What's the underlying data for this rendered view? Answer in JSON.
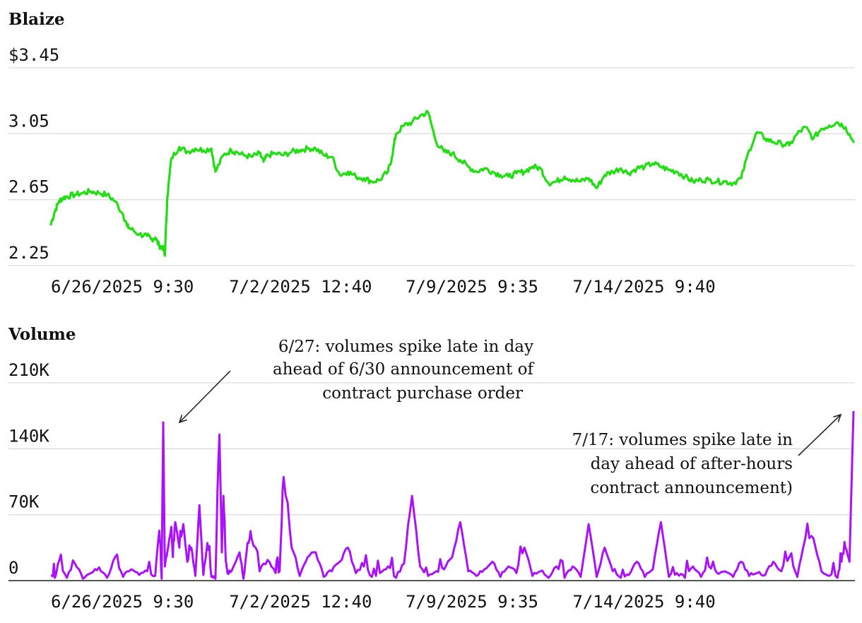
{
  "chart_data": [
    {
      "type": "line",
      "title": "Blaize",
      "y_tick_labels": [
        "$3.45",
        "3.05",
        "2.65",
        "2.25"
      ],
      "y_ticks": [
        3.45,
        3.05,
        2.65,
        2.25
      ],
      "ylim": [
        2.25,
        3.45
      ],
      "x_tick_labels": [
        "6/26/2025 9:30",
        "7/2/2025 12:40",
        "7/9/2025 9:35",
        "7/14/2025 9:40"
      ],
      "x_tick_positions": [
        0,
        0.222,
        0.442,
        0.65
      ],
      "grid": true,
      "colors": {
        "line": "#22dd11"
      },
      "series": [
        {
          "x": [
            0,
            0.005,
            0.01,
            0.015,
            0.02,
            0.03,
            0.04,
            0.05,
            0.06,
            0.07,
            0.08,
            0.09,
            0.095,
            0.1,
            0.11,
            0.12,
            0.125,
            0.13,
            0.135,
            0.14,
            0.142,
            0.145,
            0.15,
            0.16,
            0.17,
            0.18,
            0.19,
            0.2,
            0.205,
            0.215,
            0.225,
            0.23,
            0.24,
            0.25,
            0.26,
            0.265,
            0.27,
            0.28,
            0.29,
            0.3,
            0.31,
            0.32,
            0.33,
            0.34,
            0.35,
            0.36,
            0.37,
            0.38,
            0.39,
            0.4,
            0.41,
            0.42,
            0.425,
            0.43,
            0.44,
            0.45,
            0.46,
            0.47,
            0.48,
            0.49,
            0.5,
            0.51,
            0.52,
            0.53,
            0.54,
            0.55,
            0.56,
            0.57,
            0.58,
            0.59,
            0.6,
            0.61,
            0.62,
            0.63,
            0.64,
            0.65,
            0.66,
            0.67,
            0.68,
            0.69,
            0.7,
            0.71,
            0.72,
            0.73,
            0.74,
            0.75,
            0.76,
            0.77,
            0.78,
            0.79,
            0.8,
            0.81,
            0.82,
            0.83,
            0.84,
            0.85,
            0.86,
            0.87,
            0.88,
            0.89,
            0.9,
            0.91,
            0.92,
            0.93,
            0.94,
            0.95,
            0.96,
            0.97,
            0.98,
            0.99,
            1.0
          ],
          "y": [
            2.5,
            2.58,
            2.64,
            2.66,
            2.67,
            2.68,
            2.69,
            2.7,
            2.69,
            2.68,
            2.64,
            2.56,
            2.49,
            2.47,
            2.44,
            2.43,
            2.41,
            2.42,
            2.37,
            2.36,
            2.31,
            2.66,
            2.9,
            2.97,
            2.94,
            2.96,
            2.95,
            2.96,
            2.82,
            2.92,
            2.95,
            2.94,
            2.92,
            2.91,
            2.93,
            2.88,
            2.92,
            2.93,
            2.92,
            2.94,
            2.95,
            2.96,
            2.96,
            2.92,
            2.91,
            2.8,
            2.82,
            2.79,
            2.78,
            2.76,
            2.77,
            2.82,
            2.91,
            3.05,
            3.1,
            3.12,
            3.16,
            3.18,
            3.0,
            2.94,
            2.93,
            2.89,
            2.85,
            2.82,
            2.84,
            2.82,
            2.8,
            2.79,
            2.81,
            2.82,
            2.85,
            2.84,
            2.75,
            2.76,
            2.79,
            2.77,
            2.76,
            2.78,
            2.72,
            2.8,
            2.82,
            2.84,
            2.81,
            2.84,
            2.85,
            2.87,
            2.85,
            2.83,
            2.82,
            2.79,
            2.76,
            2.77,
            2.77,
            2.76,
            2.76,
            2.75,
            2.78,
            2.95,
            3.06,
            3.02,
            3.0,
            2.99,
            2.98,
            3.05,
            3.09,
            3.02,
            3.08,
            3.1,
            3.12,
            3.09,
            3.0
          ]
        }
      ]
    },
    {
      "type": "line",
      "title": "Volume",
      "y_tick_labels": [
        "210K",
        "140K",
        "70K",
        "0"
      ],
      "y_ticks": [
        210000,
        140000,
        70000,
        0
      ],
      "ylim": [
        0,
        210000
      ],
      "x_tick_labels": [
        "6/26/2025 9:30",
        "7/2/2025 12:40",
        "7/9/2025 9:35",
        "7/14/2025 9:40"
      ],
      "x_tick_positions": [
        0,
        0.222,
        0.442,
        0.65
      ],
      "grid": true,
      "colors": {
        "line": "#aa11ff"
      },
      "series": [
        {
          "x": [
            0,
            0.005,
            0.01,
            0.02,
            0.03,
            0.04,
            0.05,
            0.06,
            0.07,
            0.08,
            0.09,
            0.1,
            0.11,
            0.12,
            0.13,
            0.135,
            0.138,
            0.14,
            0.142,
            0.145,
            0.15,
            0.152,
            0.155,
            0.16,
            0.165,
            0.17,
            0.175,
            0.18,
            0.185,
            0.19,
            0.195,
            0.2,
            0.205,
            0.21,
            0.213,
            0.215,
            0.218,
            0.22,
            0.225,
            0.235,
            0.24,
            0.245,
            0.25,
            0.26,
            0.27,
            0.28,
            0.285,
            0.29,
            0.3,
            0.31,
            0.32,
            0.33,
            0.34,
            0.35,
            0.36,
            0.37,
            0.38,
            0.39,
            0.4,
            0.41,
            0.42,
            0.43,
            0.44,
            0.45,
            0.46,
            0.47,
            0.48,
            0.49,
            0.5,
            0.51,
            0.52,
            0.53,
            0.54,
            0.55,
            0.56,
            0.57,
            0.58,
            0.59,
            0.6,
            0.61,
            0.62,
            0.63,
            0.64,
            0.65,
            0.66,
            0.67,
            0.68,
            0.69,
            0.7,
            0.71,
            0.72,
            0.73,
            0.74,
            0.75,
            0.76,
            0.77,
            0.78,
            0.79,
            0.8,
            0.81,
            0.82,
            0.83,
            0.84,
            0.85,
            0.86,
            0.87,
            0.88,
            0.89,
            0.9,
            0.91,
            0.92,
            0.93,
            0.94,
            0.95,
            0.96,
            0.97,
            0.98,
            0.985,
            0.99,
            0.995,
            1.0
          ],
          "y": [
            5000,
            3000,
            20000,
            3000,
            18000,
            2000,
            8000,
            14000,
            3000,
            25000,
            4000,
            12000,
            6000,
            10000,
            5000,
            53000,
            2000,
            168000,
            15000,
            30000,
            57000,
            25000,
            62000,
            35000,
            60000,
            20000,
            35000,
            5000,
            80000,
            6000,
            40000,
            4000,
            2000,
            155000,
            30000,
            90000,
            20000,
            8000,
            10000,
            30000,
            2000,
            40000,
            45000,
            10000,
            22000,
            8000,
            10000,
            110000,
            35000,
            5000,
            25000,
            30000,
            4000,
            10000,
            20000,
            35000,
            8000,
            15000,
            4000,
            8000,
            15000,
            3000,
            18000,
            90000,
            15000,
            5000,
            10000,
            12000,
            25000,
            62000,
            10000,
            5000,
            12000,
            20000,
            4000,
            15000,
            8000,
            35000,
            5000,
            10000,
            3000,
            15000,
            3000,
            15000,
            4000,
            60000,
            4000,
            35000,
            10000,
            3000,
            6000,
            20000,
            4000,
            12000,
            62000,
            4000,
            8000,
            3000,
            15000,
            4000,
            15000,
            8000,
            10000,
            4000,
            20000,
            5000,
            8000,
            6000,
            20000,
            10000,
            25000,
            4000,
            45000,
            45000,
            10000,
            5000,
            3000,
            20000,
            35000,
            20000,
            180000
          ]
        }
      ],
      "annotations": [
        {
          "lines": [
            "6/27: volumes spike late in day",
            "ahead of 6/30 announcement of",
            "contract purchase order"
          ]
        },
        {
          "lines": [
            "7/17: volumes spike late in",
            "day ahead of after-hours",
            "contract announcement)"
          ]
        }
      ]
    }
  ]
}
